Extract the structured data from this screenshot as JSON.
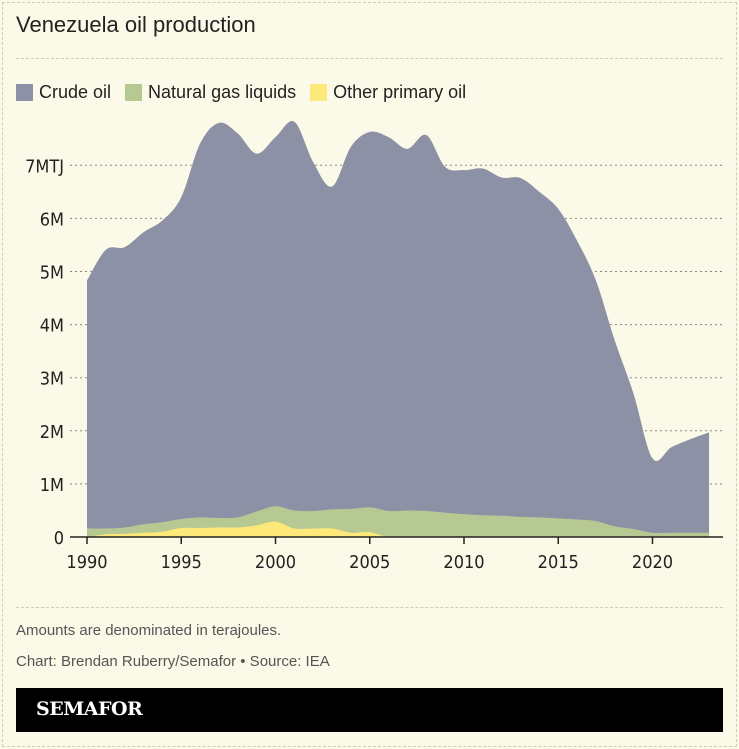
{
  "title": "Venezuela oil production",
  "footer": {
    "note": "Amounts are denominated in terajoules.",
    "credit": "Chart: Brendan Ruberry/Semafor • Source: IEA"
  },
  "brand": "SEMAFOR",
  "chart_data": {
    "type": "area",
    "stacked": true,
    "legend_position": "top-left",
    "grid": true,
    "ylim": [
      0,
      7800000
    ],
    "xlim": [
      1990,
      2023
    ],
    "y_ticks": [
      {
        "v": 0,
        "label": "0"
      },
      {
        "v": 1000000,
        "label": "1M"
      },
      {
        "v": 2000000,
        "label": "2M"
      },
      {
        "v": 3000000,
        "label": "3M"
      },
      {
        "v": 4000000,
        "label": "4M"
      },
      {
        "v": 5000000,
        "label": "5M"
      },
      {
        "v": 6000000,
        "label": "6M"
      },
      {
        "v": 7000000,
        "label": "7MTJ"
      }
    ],
    "x_ticks": [
      1990,
      1995,
      2000,
      2005,
      2010,
      2015,
      2020
    ],
    "x": [
      1990,
      1991,
      1992,
      1993,
      1994,
      1995,
      1996,
      1997,
      1998,
      1999,
      2000,
      2001,
      2002,
      2003,
      2004,
      2005,
      2006,
      2007,
      2008,
      2009,
      2010,
      2011,
      2012,
      2013,
      2014,
      2015,
      2016,
      2017,
      2018,
      2019,
      2020,
      2021,
      2022,
      2023
    ],
    "series": [
      {
        "name": "Other primary oil",
        "color": "#fde97a",
        "values": [
          0,
          50000,
          60000,
          80000,
          100000,
          170000,
          170000,
          180000,
          180000,
          220000,
          290000,
          160000,
          160000,
          160000,
          80000,
          90000,
          0,
          0,
          0,
          0,
          0,
          0,
          0,
          0,
          0,
          0,
          0,
          0,
          0,
          0,
          0,
          0,
          0,
          0
        ]
      },
      {
        "name": "Natural gas liquids",
        "color": "#b7c993",
        "values": [
          160000,
          110000,
          120000,
          160000,
          180000,
          170000,
          200000,
          180000,
          190000,
          260000,
          290000,
          340000,
          330000,
          360000,
          450000,
          470000,
          490000,
          500000,
          490000,
          460000,
          430000,
          410000,
          400000,
          380000,
          370000,
          350000,
          330000,
          300000,
          200000,
          150000,
          80000,
          80000,
          80000,
          80000
        ]
      },
      {
        "name": "Crude oil",
        "color": "#8c91a5",
        "values": [
          4670000,
          5250000,
          5280000,
          5500000,
          5680000,
          6060000,
          7040000,
          7440000,
          7230000,
          6740000,
          6950000,
          7320000,
          6570000,
          6080000,
          6820000,
          7070000,
          7040000,
          6810000,
          7080000,
          6510000,
          6480000,
          6530000,
          6370000,
          6380000,
          6130000,
          5830000,
          5250000,
          4530000,
          3500000,
          2540000,
          1400000,
          1610000,
          1760000,
          1890000
        ]
      }
    ]
  }
}
